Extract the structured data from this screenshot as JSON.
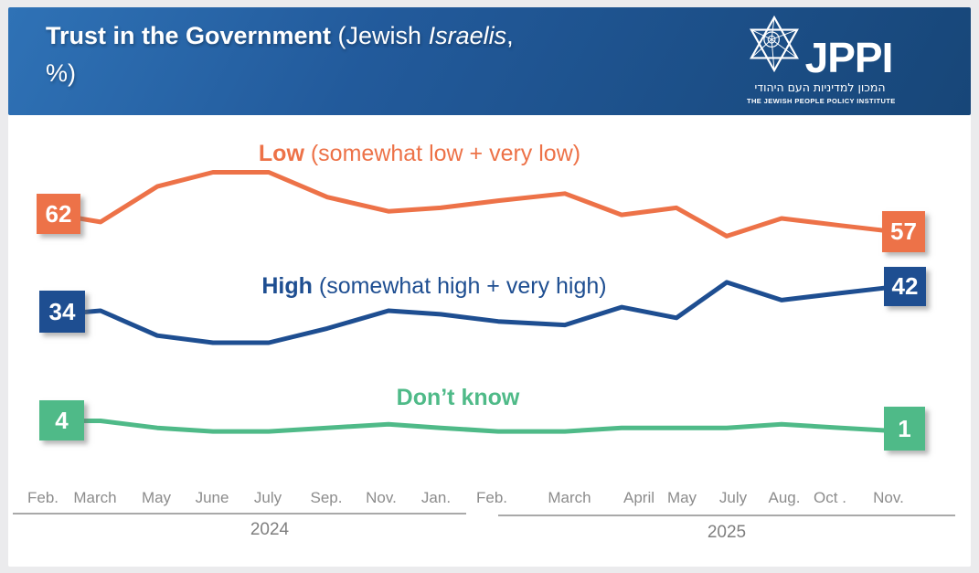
{
  "header": {
    "title_bold": "Trust in the Government",
    "title_regular": " (Jewish ",
    "title_italic": "Israelis",
    "title_after_italic": ",",
    "title_line2": "%)",
    "background_colors": [
      "#2F72B6",
      "#174678"
    ],
    "logo": {
      "acronym": "JPPI",
      "hebrew_name": "המכון למדיניות העם היהודי",
      "english_name": "THE JEWISH PEOPLE POLICY INSTITUTE",
      "star_icon": "star-of-david"
    }
  },
  "chart_data": {
    "type": "line",
    "title": "Trust in the Government (Jewish Israelis, %)",
    "unit": "%",
    "grid": false,
    "ylim": [
      0,
      80
    ],
    "legend_position": "above-each-line",
    "categories": [
      "Feb.",
      "March",
      "May",
      "June",
      "July",
      "Sep.",
      "Nov.",
      "Jan.",
      "Feb.",
      "March",
      "April",
      "May",
      "July",
      "Aug.",
      "Oct .",
      "Nov."
    ],
    "x_groups": [
      {
        "year": "2024",
        "months": [
          "Feb.",
          "March",
          "May",
          "June",
          "July",
          "Sep.",
          "Nov.",
          "Jan."
        ]
      },
      {
        "year": "2025",
        "months": [
          "Feb.",
          "March",
          "April",
          "May",
          "July",
          "Aug.",
          "Oct .",
          "Nov."
        ]
      }
    ],
    "series": [
      {
        "name": "Low (somewhat low + very low)",
        "label_bold": "Low",
        "label_rest": "(somewhat low + very low)",
        "color": "#ED7248",
        "values": [
          62,
          60,
          70,
          74,
          74,
          67,
          63,
          64,
          66,
          68,
          62,
          64,
          56,
          61,
          59,
          57
        ]
      },
      {
        "name": "High (somewhat high + very high)",
        "label_bold": "High",
        "label_rest": "(somewhat high + very high)",
        "color": "#1E4E91",
        "values": [
          34,
          35,
          28,
          26,
          26,
          30,
          35,
          34,
          32,
          31,
          36,
          33,
          43,
          38,
          40,
          42
        ]
      },
      {
        "name": "Don’t know",
        "label_bold": "Don’t know",
        "label_rest": "",
        "color": "#4FBA88",
        "values": [
          4,
          4,
          2,
          1,
          1,
          2,
          3,
          2,
          1,
          1,
          2,
          2,
          2,
          3,
          2,
          1
        ]
      }
    ]
  }
}
